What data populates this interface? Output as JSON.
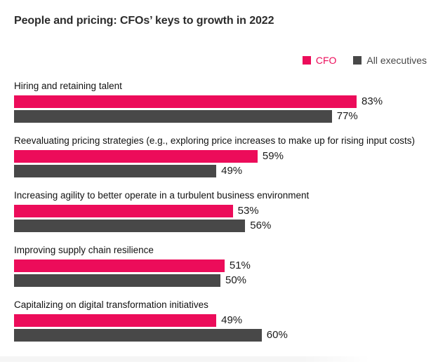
{
  "title": "People and pricing: CFOs’ keys to growth in 2022",
  "legend": {
    "items": [
      {
        "label": "CFO",
        "color": "#EC0C5A"
      },
      {
        "label": "All executives",
        "color": "#484848"
      }
    ]
  },
  "chart_data": {
    "type": "bar",
    "orientation": "horizontal",
    "title": "People and pricing: CFOs’ keys to growth in 2022",
    "unit": "%",
    "xlim": [
      0,
      100
    ],
    "grid": false,
    "legend_position": "top-right",
    "categories": [
      "Hiring and retaining talent",
      "Reevaluating pricing strategies (e.g., exploring price increases to make up for rising input costs)",
      "Increasing agility to better operate in a turbulent business environment",
      "Improving supply chain resilience",
      "Capitalizing on digital transformation initiatives"
    ],
    "series": [
      {
        "name": "CFO",
        "color": "#EC0C5A",
        "values": [
          83,
          59,
          53,
          51,
          49
        ]
      },
      {
        "name": "All executives",
        "color": "#484848",
        "values": [
          77,
          49,
          56,
          50,
          60
        ]
      }
    ]
  }
}
